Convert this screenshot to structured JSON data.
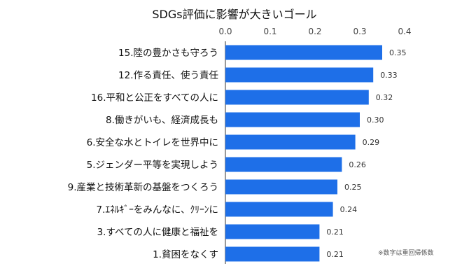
{
  "chart_data": {
    "type": "bar",
    "orientation": "horizontal",
    "title": "SDGs評価に影響が大きいゴール",
    "xlabel": "",
    "ylabel": "",
    "xlim": [
      0,
      0.4
    ],
    "ticks": [
      "0.0",
      "0.1",
      "0.2",
      "0.3",
      "0.4"
    ],
    "tick_values": [
      0,
      0.1,
      0.2,
      0.3,
      0.4
    ],
    "x_axis_position": "top",
    "grid": false,
    "categories": [
      "15.陸の豊かさも守ろう",
      "12.作る責任、使う責任",
      "16.平和と公正をすべての人に",
      "8.働きがいも、経済成長も",
      "6.安全な水とトイレを世界中に",
      "5.ジェンダー平等を実現しよう",
      "9.産業と技術革新の基盤をつくろう",
      "7.ｴﾈﾙｷﾞｰをみんなに、ｸﾘｰﾝに",
      "3.すべての人に健康と福祉を",
      "1.貧困をなくす"
    ],
    "values": [
      0.35,
      0.33,
      0.32,
      0.3,
      0.29,
      0.26,
      0.25,
      0.24,
      0.21,
      0.21
    ],
    "value_labels": [
      "0.35",
      "0.33",
      "0.32",
      "0.30",
      "0.29",
      "0.26",
      "0.25",
      "0.24",
      "0.21",
      "0.21"
    ],
    "bar_color": "#1e6fe8",
    "note": "※数字は重回帰係数"
  }
}
